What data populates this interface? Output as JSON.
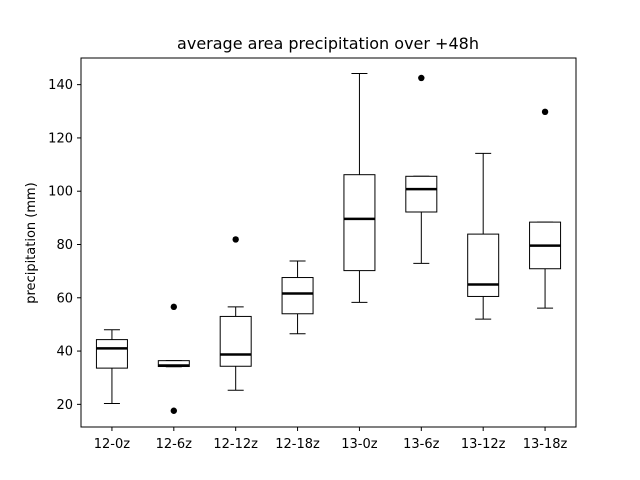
{
  "chart_data": {
    "type": "box",
    "title": "average area precipitation over +48h",
    "xlabel": "",
    "ylabel": "precipitation (mm)",
    "ylim": [
      11.5,
      150
    ],
    "yticks": [
      20,
      40,
      60,
      80,
      100,
      120,
      140
    ],
    "grid": false,
    "legend": "none",
    "categories": [
      "12-0z",
      "12-6z",
      "12-12z",
      "12-18z",
      "13-0z",
      "13-6z",
      "13-12z",
      "13-18z"
    ],
    "boxes": [
      {
        "whisker_low": 20.3,
        "q1": 33.6,
        "median": 41.0,
        "q3": 44.3,
        "whisker_high": 48.0,
        "outliers": []
      },
      {
        "whisker_low": 34.1,
        "q1": 34.2,
        "median": 34.6,
        "q3": 36.4,
        "whisker_high": 36.4,
        "outliers": [
          56.6,
          17.6
        ]
      },
      {
        "whisker_low": 25.3,
        "q1": 34.3,
        "median": 38.7,
        "q3": 53.0,
        "whisker_high": 56.6,
        "outliers": [
          81.9
        ]
      },
      {
        "whisker_low": 46.5,
        "q1": 54.0,
        "median": 61.6,
        "q3": 67.6,
        "whisker_high": 73.8,
        "outliers": []
      },
      {
        "whisker_low": 58.3,
        "q1": 70.2,
        "median": 89.6,
        "q3": 106.2,
        "whisker_high": 144.2,
        "outliers": []
      },
      {
        "whisker_low": 72.9,
        "q1": 92.2,
        "median": 100.8,
        "q3": 105.6,
        "whisker_high": 105.6,
        "outliers": [
          142.5
        ]
      },
      {
        "whisker_low": 52.0,
        "q1": 60.5,
        "median": 65.0,
        "q3": 83.9,
        "whisker_high": 114.2,
        "outliers": []
      },
      {
        "whisker_low": 56.1,
        "q1": 70.9,
        "median": 79.6,
        "q3": 88.4,
        "whisker_high": 88.4,
        "outliers": [
          129.8
        ]
      }
    ]
  }
}
